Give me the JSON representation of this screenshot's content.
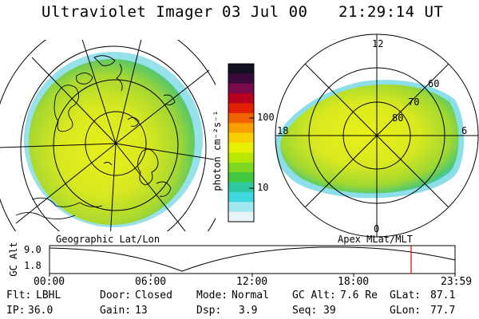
{
  "header": {
    "title": "Ultraviolet Imager",
    "date": "03 Jul 00",
    "time": "21:29:14 UT"
  },
  "colorbar": {
    "unit_label": "photon cm⁻²s⁻¹",
    "ticks": [
      "100",
      "10"
    ],
    "colors": [
      "#101020",
      "#3a0a3a",
      "#7a0a4a",
      "#b8001e",
      "#e02000",
      "#f06400",
      "#f8a000",
      "#f8d000",
      "#e8f000",
      "#b8e800",
      "#80d820",
      "#40c840",
      "#30c8a0",
      "#40d8e0",
      "#a0e8f0",
      "#e8f4f8"
    ]
  },
  "panels": {
    "left_caption": "Geographic Lat/Lon",
    "right_caption": "Apex MLat/MLT",
    "polar_labels": {
      "top": "12",
      "bottom": "0",
      "left": "18",
      "right": "6",
      "lat60": "60",
      "lat70": "70",
      "lat80": "80"
    }
  },
  "altitude_plot": {
    "axis_title": "GC Alt",
    "y_max": "9.0",
    "y_min": "1.8",
    "x_ticks": [
      "00:00",
      "06:00",
      "12:00",
      "18:00",
      "23:59"
    ],
    "marker_color": "#e00000"
  },
  "status": {
    "flt_label": "Flt:",
    "flt_value": "LBHL",
    "ip_label": "IP:",
    "ip_value": "36.0",
    "door_label": "Door:",
    "door_value": "Closed",
    "gain_label": "Gain:",
    "gain_value": "13",
    "mode_label": "Mode:",
    "mode_value": "Normal",
    "dsp_label": "Dsp:",
    "dsp_value": "3.9",
    "gcalt_label": "GC Alt:",
    "gcalt_value": "7.6 Re",
    "seq_label": "Seq:",
    "seq_value": "39",
    "glat_label": "GLat:",
    "glat_value": "87.1",
    "glon_label": "GLon:",
    "glon_value": "77.7"
  }
}
